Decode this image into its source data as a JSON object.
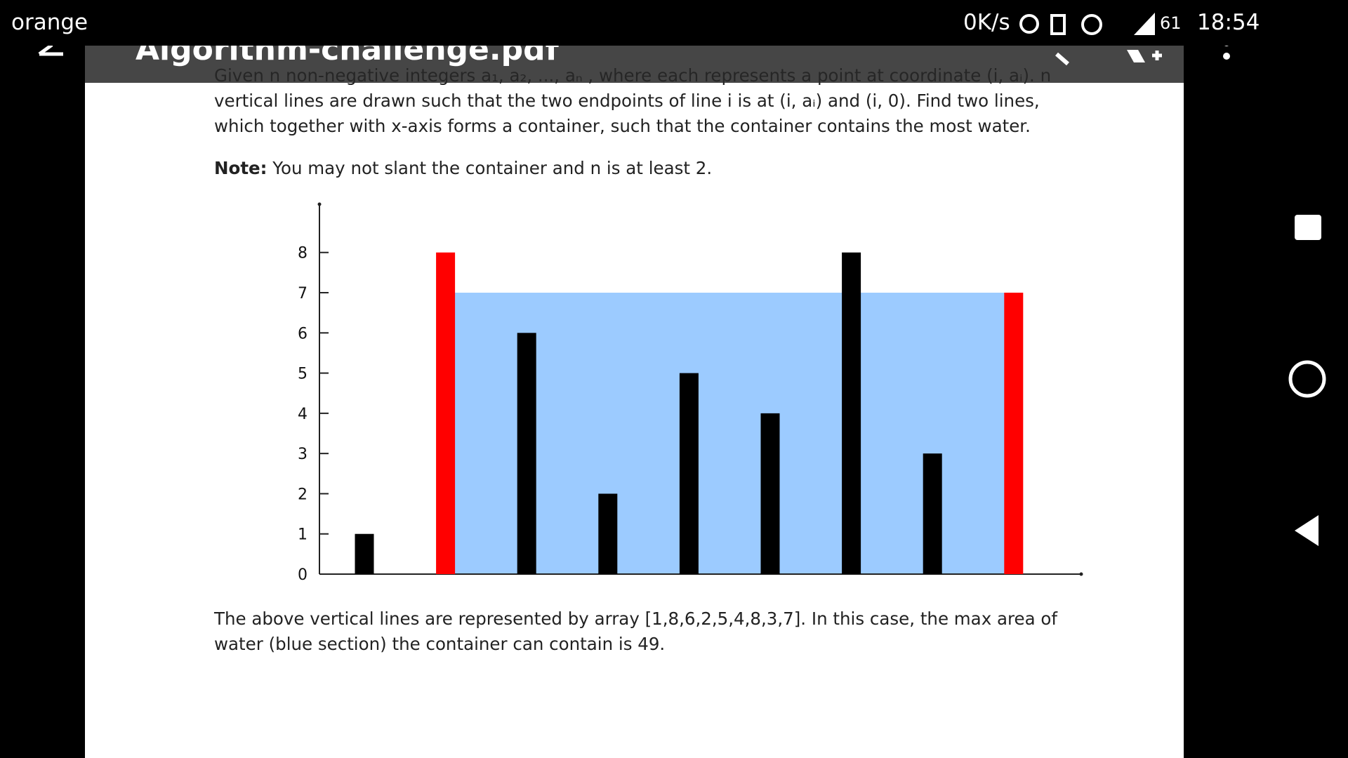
{
  "status_bar": {
    "carrier": "orange",
    "speed": "0K/s",
    "battery": "61",
    "time": "18:54"
  },
  "toolbar": {
    "title": "Algorithm-challenge.pdf"
  },
  "document": {
    "paragraph": "Given n non-negative integers a₁, a₂, ..., aₙ , where each represents a point at coordinate (i, aᵢ). n vertical lines are drawn such that the two endpoints of line i is at (i, aᵢ) and (i, 0). Find two lines, which together with x-axis forms a container, such that the container contains the most water.",
    "note_label": "Note:",
    "note_text": "You may not slant the container and n is at least 2.",
    "caption": "The above vertical lines are represented by array [1,8,6,2,5,4,8,3,7]. In this case, the max area of water (blue section) the container can contain is 49."
  },
  "chart_data": {
    "type": "bar",
    "values": [
      1,
      8,
      6,
      2,
      5,
      4,
      8,
      3,
      7
    ],
    "colors": [
      "#000000",
      "#ff0000",
      "#000000",
      "#000000",
      "#000000",
      "#000000",
      "#000000",
      "#000000",
      "#ff0000"
    ],
    "highlight": [
      1,
      8
    ],
    "area_color": "#9ccbff",
    "ylim": [
      0,
      9.2
    ],
    "yticks": [
      0,
      1,
      2,
      3,
      4,
      5,
      6,
      7,
      8
    ]
  }
}
